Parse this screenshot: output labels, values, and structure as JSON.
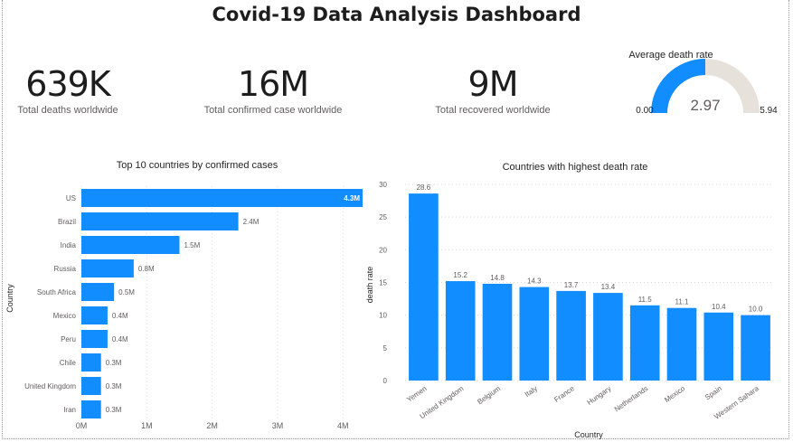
{
  "dashboard": {
    "title": "Covid-19 Data Analysis Dashboard"
  },
  "kpis": [
    {
      "value": "639K",
      "label": "Total deaths worldwide"
    },
    {
      "value": "16M",
      "label": "Total confirmed case worldwide"
    },
    {
      "value": "9M",
      "label": "Total recovered worldwide"
    }
  ],
  "gauge": {
    "title": "Average death rate",
    "min": 0.0,
    "max": 5.94,
    "value": 2.97,
    "min_label": "0.00",
    "max_label": "5.94",
    "value_label": "2.97",
    "fill_color": "#118DFF",
    "track_color": "#E6E1DA"
  },
  "chart_data": [
    {
      "type": "bar",
      "orientation": "horizontal",
      "title": "Top 10 countries by confirmed cases",
      "xlabel": "",
      "ylabel": "Country",
      "categories": [
        "US",
        "Brazil",
        "India",
        "Russia",
        "South Africa",
        "Mexico",
        "Peru",
        "Chile",
        "United Kingdom",
        "Iran"
      ],
      "values": [
        4.3,
        2.4,
        1.5,
        0.8,
        0.5,
        0.4,
        0.4,
        0.3,
        0.3,
        0.3
      ],
      "data_labels": [
        "4.3M",
        "2.4M",
        "1.5M",
        "0.8M",
        "0.5M",
        "0.4M",
        "0.4M",
        "0.3M",
        "0.3M",
        "0.3M"
      ],
      "xlim": [
        0,
        4.3
      ],
      "xticks": [
        0,
        1,
        2,
        3,
        4
      ],
      "xtick_labels": [
        "0M",
        "1M",
        "2M",
        "3M",
        "4M"
      ],
      "grid": true,
      "color": "#118DFF"
    },
    {
      "type": "bar",
      "orientation": "vertical",
      "title": "Countries with highest death rate",
      "xlabel": "Country",
      "ylabel": "death rate",
      "categories": [
        "Yemen",
        "United Kingdom",
        "Belgium",
        "Italy",
        "France",
        "Hungary",
        "Netherlands",
        "Mexico",
        "Spain",
        "Western Sahara"
      ],
      "values": [
        28.6,
        15.2,
        14.8,
        14.3,
        13.7,
        13.4,
        11.5,
        11.1,
        10.4,
        10.0
      ],
      "data_labels": [
        "28.6",
        "15.2",
        "14.8",
        "14.3",
        "13.7",
        "13.4",
        "11.5",
        "11.1",
        "10.4",
        "10.0"
      ],
      "ylim": [
        0,
        30
      ],
      "yticks": [
        0,
        5,
        10,
        15,
        20,
        25,
        30
      ],
      "ytick_labels": [
        "0",
        "5",
        "10",
        "15",
        "20",
        "25",
        "30"
      ],
      "grid": true,
      "color": "#118DFF"
    }
  ]
}
